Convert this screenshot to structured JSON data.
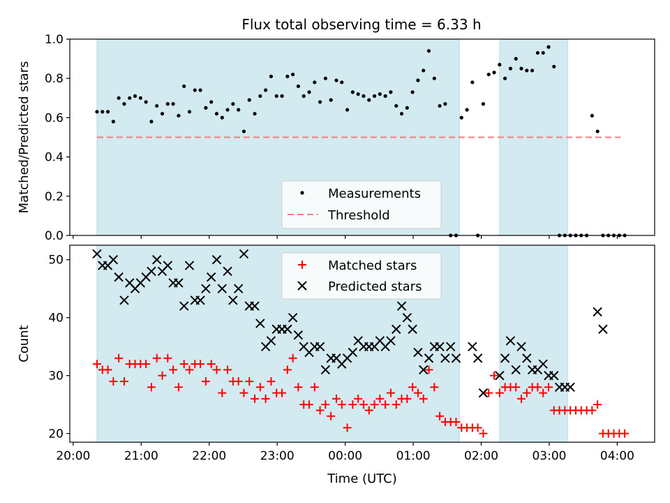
{
  "title": "Flux total observing time = 6.33 h",
  "chart_data": [
    {
      "type": "scatter",
      "panel": "top",
      "ylabel": "Matched/Predicted stars",
      "xlabel": "",
      "ylim": [
        0.0,
        1.0
      ],
      "yticks": [
        "0.0",
        "0.2",
        "0.4",
        "0.6",
        "0.8",
        "1.0"
      ],
      "xlim_h": [
        -0.05,
        8.55
      ],
      "xticks": [
        0,
        1,
        2,
        3,
        4,
        5,
        6,
        7,
        8
      ],
      "xtick_labels": [],
      "shaded_spans_h": [
        [
          0.35,
          5.68
        ],
        [
          6.27,
          7.27
        ]
      ],
      "shade_color": "#d4eaf1",
      "series": [
        {
          "name": "Measurements",
          "color": "#000000",
          "marker": "dot",
          "x": [
            0.35,
            0.43,
            0.51,
            0.59,
            0.67,
            0.75,
            0.83,
            0.91,
            0.99,
            1.07,
            1.15,
            1.23,
            1.31,
            1.39,
            1.47,
            1.55,
            1.63,
            1.71,
            1.79,
            1.87,
            1.95,
            2.03,
            2.11,
            2.19,
            2.27,
            2.35,
            2.43,
            2.51,
            2.59,
            2.67,
            2.75,
            2.83,
            2.91,
            2.99,
            3.07,
            3.15,
            3.23,
            3.31,
            3.39,
            3.47,
            3.55,
            3.63,
            3.71,
            3.79,
            3.87,
            3.95,
            4.03,
            4.11,
            4.19,
            4.27,
            4.35,
            4.43,
            4.51,
            4.59,
            4.67,
            4.75,
            4.83,
            4.91,
            4.99,
            5.07,
            5.15,
            5.23,
            5.31,
            5.39,
            5.47,
            5.55,
            5.63,
            5.71,
            5.79,
            5.87,
            5.95,
            6.03,
            6.11,
            6.19,
            6.27,
            6.35,
            6.43,
            6.51,
            6.59,
            6.67,
            6.75,
            6.83,
            6.91,
            6.99,
            7.07,
            7.15,
            7.23,
            7.31,
            7.39,
            7.47,
            7.55,
            7.63,
            7.71,
            7.79,
            7.87,
            7.95,
            8.03,
            8.11
          ],
          "y": [
            0.63,
            0.63,
            0.63,
            0.58,
            0.7,
            0.67,
            0.7,
            0.71,
            0.7,
            0.68,
            0.58,
            0.66,
            0.62,
            0.67,
            0.67,
            0.61,
            0.76,
            0.63,
            0.74,
            0.74,
            0.65,
            0.68,
            0.62,
            0.6,
            0.64,
            0.67,
            0.64,
            0.53,
            0.69,
            0.62,
            0.71,
            0.74,
            0.81,
            0.71,
            0.71,
            0.81,
            0.82,
            0.76,
            0.71,
            0.73,
            0.78,
            0.68,
            0.8,
            0.69,
            0.79,
            0.78,
            0.64,
            0.73,
            0.72,
            0.71,
            0.69,
            0.71,
            0.72,
            0.71,
            0.73,
            0.66,
            0.62,
            0.65,
            0.73,
            0.79,
            0.84,
            0.94,
            0.8,
            0.66,
            0.67,
            0.0,
            0.0,
            0.6,
            0.64,
            0.78,
            0.0,
            0.67,
            0.82,
            0.83,
            0.87,
            0.8,
            0.85,
            0.9,
            0.85,
            0.84,
            0.84,
            0.93,
            0.93,
            0.96,
            0.86,
            0.0,
            0.0,
            0.0,
            0.0,
            0.0,
            0.0,
            0.61,
            0.53,
            0.0,
            0.0,
            0.0,
            0.0,
            0.0
          ]
        },
        {
          "name": "Threshold",
          "color": "#f08080",
          "style": "dashed",
          "x": [
            0.35,
            8.05
          ],
          "y": [
            0.5,
            0.5
          ]
        }
      ]
    },
    {
      "type": "scatter",
      "panel": "bottom",
      "ylabel": "Count",
      "xlabel": "Time (UTC)",
      "ylim": [
        18.5,
        52.5
      ],
      "yticks": [
        "20",
        "30",
        "40",
        "50"
      ],
      "ytick_values": [
        20,
        30,
        40,
        50
      ],
      "xlim_h": [
        -0.05,
        8.55
      ],
      "xticks": [
        0,
        1,
        2,
        3,
        4,
        5,
        6,
        7,
        8
      ],
      "xtick_labels": [
        "20:00",
        "21:00",
        "22:00",
        "23:00",
        "00:00",
        "01:00",
        "02:00",
        "03:00",
        "04:00"
      ],
      "shaded_spans_h": [
        [
          0.35,
          5.68
        ],
        [
          6.27,
          7.27
        ]
      ],
      "shade_color": "#d4eaf1",
      "series": [
        {
          "name": "Matched stars",
          "color": "#ff0000",
          "marker": "plus",
          "x": [
            0.35,
            0.43,
            0.51,
            0.59,
            0.67,
            0.75,
            0.83,
            0.91,
            0.99,
            1.07,
            1.15,
            1.23,
            1.31,
            1.39,
            1.47,
            1.55,
            1.63,
            1.71,
            1.79,
            1.87,
            1.95,
            2.03,
            2.11,
            2.19,
            2.27,
            2.35,
            2.43,
            2.51,
            2.59,
            2.67,
            2.75,
            2.83,
            2.91,
            2.99,
            3.07,
            3.15,
            3.23,
            3.31,
            3.39,
            3.47,
            3.55,
            3.63,
            3.71,
            3.79,
            3.87,
            3.95,
            4.03,
            4.11,
            4.19,
            4.27,
            4.35,
            4.43,
            4.51,
            4.59,
            4.67,
            4.75,
            4.83,
            4.91,
            4.99,
            5.07,
            5.15,
            5.23,
            5.31,
            5.39,
            5.47,
            5.55,
            5.63,
            5.71,
            5.79,
            5.87,
            5.95,
            6.03,
            6.11,
            6.19,
            6.27,
            6.35,
            6.43,
            6.51,
            6.59,
            6.67,
            6.75,
            6.83,
            6.91,
            6.99,
            7.07,
            7.15,
            7.23,
            7.31,
            7.39,
            7.47,
            7.55,
            7.63,
            7.71,
            7.79,
            7.87,
            7.95,
            8.03,
            8.11
          ],
          "y": [
            32,
            31,
            31,
            29,
            33,
            29,
            32,
            32,
            32,
            32,
            28,
            33,
            30,
            33,
            31,
            28,
            32,
            31,
            32,
            32,
            29,
            32,
            31,
            27,
            31,
            29,
            29,
            27,
            29,
            26,
            28,
            26,
            29,
            27,
            27,
            31,
            33,
            28,
            25,
            25,
            28,
            24,
            25,
            23,
            26,
            25,
            21,
            25,
            26,
            25,
            24,
            25,
            26,
            25,
            27,
            25,
            26,
            26,
            28,
            27,
            26,
            31,
            28,
            23,
            22,
            22,
            22,
            21,
            21,
            21,
            21,
            20,
            27,
            30,
            27,
            28,
            28,
            28,
            26,
            27,
            28,
            28,
            27,
            28,
            24,
            24,
            24,
            24,
            24,
            24,
            24,
            24,
            25,
            20,
            20,
            20,
            20,
            20
          ]
        },
        {
          "name": "Predicted stars",
          "color": "#000000",
          "marker": "x",
          "x": [
            0.35,
            0.43,
            0.51,
            0.59,
            0.67,
            0.75,
            0.83,
            0.91,
            0.99,
            1.07,
            1.15,
            1.23,
            1.31,
            1.39,
            1.47,
            1.55,
            1.63,
            1.71,
            1.79,
            1.87,
            1.95,
            2.03,
            2.11,
            2.19,
            2.27,
            2.35,
            2.43,
            2.51,
            2.59,
            2.67,
            2.75,
            2.83,
            2.91,
            2.99,
            3.07,
            3.15,
            3.23,
            3.31,
            3.39,
            3.47,
            3.55,
            3.63,
            3.71,
            3.79,
            3.87,
            3.95,
            4.03,
            4.11,
            4.19,
            4.27,
            4.35,
            4.43,
            4.51,
            4.59,
            4.67,
            4.75,
            4.83,
            4.91,
            4.99,
            5.07,
            5.15,
            5.23,
            5.31,
            5.39,
            5.47,
            5.55,
            5.63,
            5.87,
            5.95,
            6.03,
            6.27,
            6.35,
            6.43,
            6.51,
            6.59,
            6.67,
            6.75,
            6.83,
            6.91,
            6.99,
            7.07,
            7.15,
            7.23,
            7.31,
            7.71,
            7.79
          ],
          "y": [
            51,
            49,
            49,
            50,
            47,
            43,
            46,
            45,
            46,
            47,
            48,
            50,
            48,
            49,
            46,
            46,
            42,
            49,
            43,
            43,
            45,
            47,
            50,
            45,
            48,
            43,
            45,
            51,
            42,
            42,
            39,
            35,
            36,
            38,
            38,
            38,
            40,
            37,
            35,
            34,
            35,
            35,
            31,
            33,
            33,
            32,
            33,
            34,
            36,
            35,
            35,
            35,
            36,
            35,
            36,
            38,
            42,
            40,
            38,
            34,
            31,
            33,
            35,
            35,
            33,
            35,
            33,
            35,
            33,
            27,
            30,
            33,
            36,
            31,
            35,
            33,
            31,
            31,
            32,
            30,
            30,
            28,
            28,
            28,
            41,
            38
          ]
        }
      ]
    }
  ],
  "legend_top": {
    "measurements_label": "Measurements",
    "threshold_label": "Threshold"
  },
  "legend_bottom": {
    "matched_label": "Matched stars",
    "predicted_label": "Predicted stars"
  }
}
